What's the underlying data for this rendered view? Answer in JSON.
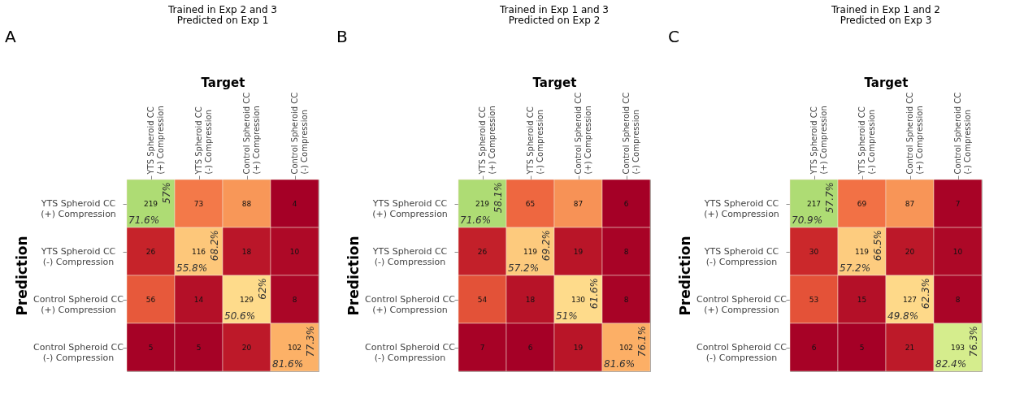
{
  "chart_data": [
    {
      "type": "heatmap",
      "title": "Trained in Exp 2 and 3",
      "subtitle": "Predicted on Exp 1",
      "xlabel": "Target",
      "ylabel": "Prediction",
      "categories": [
        "YTS Spheroid CC\n(+) Compression",
        "YTS Spheroid CC\n(-) Compression",
        "Control Spheroid CC\n(+) Compression",
        "Control Spheroid CC\n(-) Compression"
      ],
      "y_categories": [
        "YTS Spheroid CC\n(+) Compression",
        "YTS Spheroid CC\n(-) Compression",
        "Control Spheroid CC\n(+) Compression",
        "Control Spheroid CC\n(-) Compression"
      ],
      "cells": [
        [
          219,
          73,
          88,
          4
        ],
        [
          26,
          116,
          18,
          10
        ],
        [
          56,
          14,
          129,
          8
        ],
        [
          5,
          5,
          20,
          102
        ]
      ],
      "data_labels": true,
      "grid": false,
      "legend": false,
      "annotations": [
        "A",
        "71.6%",
        "57%",
        "55.8%",
        "68.2%",
        "50.6%",
        "62%",
        "81.6%",
        "77.3%"
      ]
    },
    {
      "type": "heatmap",
      "title": "Trained in Exp 1 and 3",
      "subtitle": "Predicted on Exp 2",
      "xlabel": "Target",
      "ylabel": "Prediction",
      "categories": [
        "YTS Spheroid CC\n(+) Compression",
        "YTS Spheroid CC\n(-) Compression",
        "Control Spheroid CC\n(+) Compression",
        "Control Spheroid CC\n(-) Compression"
      ],
      "y_categories": [
        "YTS Spheroid CC\n(+) Compression",
        "YTS Spheroid CC\n(-) Compression",
        "Control Spheroid CC\n(+) Compression",
        "Control Spheroid CC\n(-) Compression"
      ],
      "cells": [
        [
          219,
          65,
          87,
          6
        ],
        [
          26,
          119,
          19,
          8
        ],
        [
          54,
          18,
          130,
          8
        ],
        [
          7,
          6,
          19,
          102
        ]
      ],
      "data_labels": true,
      "grid": false,
      "legend": false,
      "annotations": [
        "B",
        "71.6%",
        "58.1%",
        "57.2%",
        "69.2%",
        "51%",
        "61.6%",
        "81.6%",
        "76.1%"
      ]
    },
    {
      "type": "heatmap",
      "title": "Trained in Exp 1 and 2",
      "subtitle": "Predicted on Exp 3",
      "xlabel": "Target",
      "ylabel": "Prediction",
      "categories": [
        "YTS Spheroid CC\n(+) Compression",
        "YTS Spheroid CC\n(-) Compression",
        "Control Spheroid CC\n(+) Compression",
        "Control Spheroid CC\n(-) Compression"
      ],
      "y_categories": [
        "YTS Spheroid CC\n(+) Compression",
        "YTS Spheroid CC\n(-) Compression",
        "Control Spheroid CC\n(+) Compression",
        "Control Spheroid CC\n(-) Compression"
      ],
      "cells": [
        [
          217,
          69,
          87,
          7
        ],
        [
          30,
          119,
          20,
          10
        ],
        [
          53,
          15,
          127,
          8
        ],
        [
          6,
          5,
          21,
          193
        ]
      ],
      "data_labels": true,
      "grid": false,
      "legend": false,
      "annotations": [
        "C",
        "70.9%",
        "57.7%",
        "57.2%",
        "66.5%",
        "49.8%",
        "62.3%",
        "82.4%",
        "76.3%"
      ]
    }
  ]
}
